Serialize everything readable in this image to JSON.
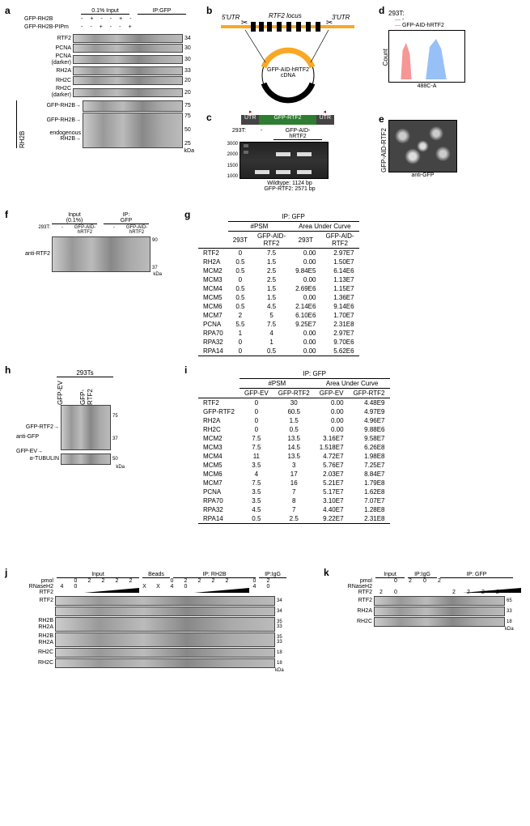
{
  "panelA": {
    "label": "a",
    "header": {
      "input": "0.1% Input",
      "ip": "IP:GFP"
    },
    "rows": [
      {
        "name": "GFP-RH2B",
        "lanes": [
          "-",
          "+",
          "-",
          "-",
          "+",
          "-"
        ]
      },
      {
        "name": "GFP-RH2B-PIPm",
        "lanes": [
          "-",
          "-",
          "+",
          "-",
          "-",
          "+"
        ]
      }
    ],
    "blots": [
      {
        "label": "RTF2",
        "mw": "34"
      },
      {
        "label": "PCNA",
        "mw": "30"
      },
      {
        "label": "PCNA\n(darker)",
        "mw": "30"
      },
      {
        "label": "RH2A",
        "mw": "33"
      },
      {
        "label": "RH2C",
        "mw": "20"
      },
      {
        "label": "RH2C\n(darker)",
        "mw": "20"
      }
    ],
    "rh2b_group": {
      "side_label": "RH2B",
      "arrows": [
        "GFP-RH2B→",
        "GFP-RH2B→",
        "endogenous\nRH2B→"
      ],
      "mw": [
        "75",
        "75",
        "50",
        "25"
      ]
    },
    "kda": "kDa"
  },
  "panelB": {
    "label": "b",
    "utr5": "5'UTR",
    "locus": "RTF2 locus",
    "utr3": "3'UTR",
    "plasmid_label": "GFP-AID-hRTF2\ncDNA"
  },
  "panelC": {
    "label": "c",
    "diagram": {
      "utr_l": "UTR",
      "mid": "GFP-RTF2",
      "utr_r": "UTR"
    },
    "lane_labels": {
      "cell": "293T:",
      "minus": "-",
      "sample": "GFP-AID-\nhRTF2"
    },
    "ladder": [
      "3000",
      "2000",
      "1500",
      "1000"
    ],
    "legend": {
      "wt": "Wildtype: 1124 bp",
      "kn": "GFP-RTF2: 2571 bp"
    }
  },
  "panelD": {
    "label": "d",
    "title": "293T:",
    "red": "-",
    "blue": "GFP-AID-hRTF2",
    "ylab": "Count",
    "xlab": "488C-A"
  },
  "panelE": {
    "label": "e",
    "vlab": "GFP-AID-RTF2",
    "caption": "anti-GFP"
  },
  "panelF": {
    "label": "f",
    "header": {
      "input": "Input\n(0.1%)",
      "ip": "IP:\nGFP"
    },
    "col1": "293T:",
    "cols": [
      "-",
      "GFP-AID-\nhRTF2",
      "-",
      "GFP-AID-\nhRTF2"
    ],
    "ab": "anti-RTF2",
    "mw": [
      "90",
      "37"
    ],
    "kda": "kDa"
  },
  "panelG": {
    "label": "g",
    "title": "IP: GFP",
    "headers": {
      "psm": "#PSM",
      "auc": "Area Under Curve"
    },
    "sub": [
      "293T",
      "GFP-AID-\nRTF2",
      "293T",
      "GFP-AID-\nRTF2"
    ],
    "rows": [
      [
        "RTF2",
        "0",
        "7.5",
        "0.00",
        "2.97E7"
      ],
      [
        "RH2A",
        "0.5",
        "1.5",
        "0.00",
        "1.50E7"
      ],
      [
        "MCM2",
        "0.5",
        "2.5",
        "9.84E5",
        "6.14E6"
      ],
      [
        "MCM3",
        "0",
        "2.5",
        "0.00",
        "1.13E7"
      ],
      [
        "MCM4",
        "0.5",
        "1.5",
        "2.69E6",
        "1.15E7"
      ],
      [
        "MCM5",
        "0.5",
        "1.5",
        "0.00",
        "1.36E7"
      ],
      [
        "MCM6",
        "0.5",
        "4.5",
        "2.14E6",
        "9.14E6"
      ],
      [
        "MCM7",
        "2",
        "5",
        "6.10E6",
        "1.70E7"
      ],
      [
        "PCNA",
        "5.5",
        "7.5",
        "9.25E7",
        "2.31E8"
      ],
      [
        "RPA70",
        "1",
        "4",
        "0.00",
        "2.97E7"
      ],
      [
        "RPA32",
        "0",
        "1",
        "0.00",
        "9.70E6"
      ],
      [
        "RPA14",
        "0",
        "0.5",
        "0.00",
        "5.62E6"
      ]
    ]
  },
  "panelH": {
    "label": "h",
    "title": "293Ts",
    "cols": [
      "GFP-EV",
      "GFP-RTF2"
    ],
    "bands": [
      {
        "label": "GFP-RTF2→",
        "mw": "75"
      },
      {
        "label": "anti-GFP",
        "mw": ""
      },
      {
        "label": "GFP-EV→",
        "mw": "37"
      }
    ],
    "tub": "α-TUBULIN",
    "tub_mw": "50",
    "kda": "kDa"
  },
  "panelI": {
    "label": "i",
    "title": "IP: GFP",
    "headers": {
      "psm": "#PSM",
      "auc": "Area Under Curve"
    },
    "sub": [
      "GFP-EV",
      "GFP-RTF2",
      "GFP-EV",
      "GFP-RTF2"
    ],
    "rows": [
      [
        "RTF2",
        "0",
        "30",
        "0.00",
        "4.48E9"
      ],
      [
        "GFP-RTF2",
        "0",
        "60.5",
        "0.00",
        "4.97E9"
      ],
      [
        "RH2A",
        "0",
        "1.5",
        "0.00",
        "4.96E7"
      ],
      [
        "RH2C",
        "0",
        "0.5",
        "0.00",
        "9.88E6"
      ],
      [
        "MCM2",
        "7.5",
        "13.5",
        "3.16E7",
        "9.58E7"
      ],
      [
        "MCM3",
        "7.5",
        "14.5",
        "1.518E7",
        "6.26E8"
      ],
      [
        "MCM4",
        "11",
        "13.5",
        "4.72E7",
        "1.98E8"
      ],
      [
        "MCM5",
        "3.5",
        "3",
        "5.76E7",
        "7.25E7"
      ],
      [
        "MCM6",
        "4",
        "17",
        "2.03E7",
        "8.84E7"
      ],
      [
        "MCM7",
        "7.5",
        "16",
        "5.21E7",
        "1.79E8"
      ],
      [
        "PCNA",
        "3.5",
        "7",
        "5.17E7",
        "1.62E8"
      ],
      [
        "RPA70",
        "3.5",
        "8",
        "3.10E7",
        "7.07E7"
      ],
      [
        "RPA32",
        "4.5",
        "7",
        "4.40E7",
        "1.28E8"
      ],
      [
        "RPA14",
        "0.5",
        "2.5",
        "9.22E7",
        "2.31E8"
      ]
    ]
  },
  "panelJ": {
    "label": "j",
    "rowlabels": [
      "pmol",
      "RNaseH2",
      "RTF2"
    ],
    "group_hdrs": [
      "Input",
      "Beads",
      "IP: RH2B",
      "IP:IgG"
    ],
    "row_pmol": [
      "",
      "0",
      "2",
      "2",
      "2",
      "2",
      "",
      "",
      "0",
      "2",
      "2",
      "2",
      "2",
      "",
      "0",
      "2"
    ],
    "row_rnase": [
      "4",
      "0",
      "",
      "",
      "",
      "",
      "X",
      "X",
      "4",
      "0",
      "",
      "",
      "",
      "",
      "4",
      "0"
    ],
    "row_rtf2": [
      "",
      "",
      "",
      "",
      "",
      "",
      "",
      "",
      "",
      "",
      "",
      "",
      "",
      "",
      "",
      ""
    ],
    "wedge_input": true,
    "wedge_ip": true,
    "blots": [
      {
        "label": "RTF2",
        "mw": "34"
      },
      {
        "label": "",
        "mw": "34"
      },
      {
        "label": "RH2B\nRH2A",
        "mw": "35\n33"
      },
      {
        "label": "RH2B\nRH2A",
        "mw": "35\n33"
      },
      {
        "label": "RH2C",
        "mw": "18"
      },
      {
        "label": "RH2C",
        "mw": "18"
      }
    ],
    "kda": "kDa"
  },
  "panelK": {
    "label": "k",
    "rowlabels": [
      "pmol",
      "RNaseH2",
      "RTF2"
    ],
    "group_hdrs": [
      "Input",
      "IP:IgG",
      "IP: GFP"
    ],
    "row_pmol": [
      "",
      "0",
      "2",
      "0",
      "2",
      "",
      "",
      "",
      ""
    ],
    "row_rnase": [
      "",
      "",
      "",
      "",
      "",
      "",
      "",
      "",
      ""
    ],
    "row_rtf2": [
      "2",
      "0",
      "",
      "",
      "",
      "2",
      "2",
      "2",
      "2"
    ],
    "wedge_ip": true,
    "blots": [
      {
        "label": "RTF2",
        "mw": "65"
      },
      {
        "label": "RH2A",
        "mw": "33"
      },
      {
        "label": "RH2C",
        "mw": "18"
      }
    ],
    "kda": "kDa"
  }
}
